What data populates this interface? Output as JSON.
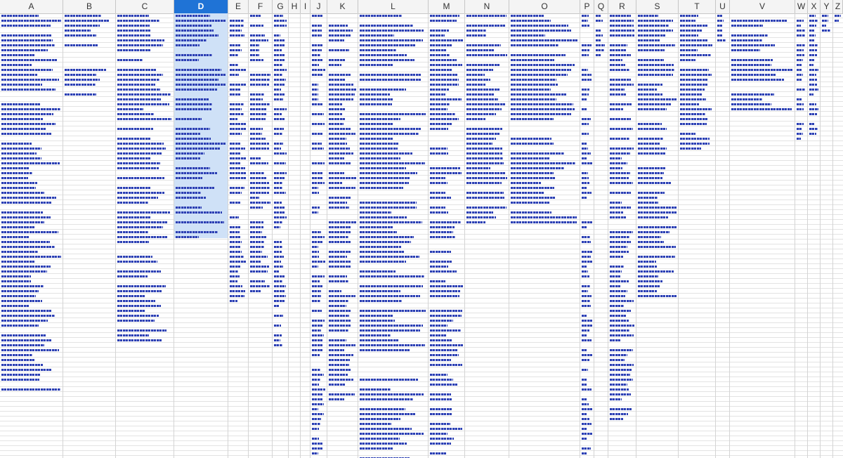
{
  "app": {
    "name": "Spreadsheet",
    "selected_column": "D"
  },
  "columns": [
    {
      "label": "A",
      "selected": false
    },
    {
      "label": "B",
      "selected": false
    },
    {
      "label": "C",
      "selected": false
    },
    {
      "label": "D",
      "selected": true
    },
    {
      "label": "E",
      "selected": false
    },
    {
      "label": "F",
      "selected": false
    },
    {
      "label": "G",
      "selected": false
    },
    {
      "label": "H",
      "selected": false
    },
    {
      "label": "I",
      "selected": false
    },
    {
      "label": "J",
      "selected": false
    },
    {
      "label": "K",
      "selected": false
    },
    {
      "label": "L",
      "selected": false
    },
    {
      "label": "M",
      "selected": false
    },
    {
      "label": "N",
      "selected": false
    },
    {
      "label": "O",
      "selected": false
    },
    {
      "label": "P",
      "selected": false
    },
    {
      "label": "Q",
      "selected": false
    },
    {
      "label": "R",
      "selected": false
    },
    {
      "label": "S",
      "selected": false
    },
    {
      "label": "T",
      "selected": false
    },
    {
      "label": "U",
      "selected": false
    },
    {
      "label": "V",
      "selected": false
    },
    {
      "label": "W",
      "selected": false
    },
    {
      "label": "X",
      "selected": false
    },
    {
      "label": "Y",
      "selected": false
    },
    {
      "label": "Z",
      "selected": false
    }
  ],
  "colors": {
    "selection_header": "#1f73d6",
    "selection_fill": "#cfe1f7",
    "hyperlink": "#2b3fb3",
    "gridline": "#e3e3e3",
    "header_bg": "#f4f4f4"
  }
}
